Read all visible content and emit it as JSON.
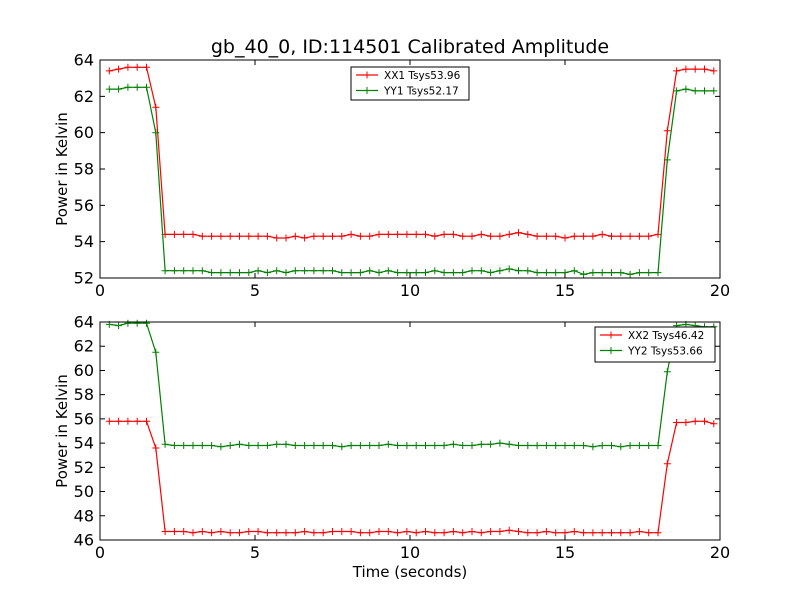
{
  "chart_data": [
    {
      "type": "line",
      "title": "gb_40_0, ID:114501 Calibrated Amplitude",
      "xlabel": "",
      "ylabel": "Power in Kelvin",
      "xlim": [
        0,
        20
      ],
      "ylim": [
        52,
        64
      ],
      "xticks": [
        "0",
        "5",
        "10",
        "15",
        "20"
      ],
      "yticks": [
        "52",
        "54",
        "56",
        "58",
        "60",
        "62",
        "64"
      ],
      "legend_position": "top-center",
      "series": [
        {
          "name": "XX1 Tsys53.96",
          "color": "#ff0000",
          "x": [
            0.3,
            0.6,
            0.9,
            1.2,
            1.5,
            1.8,
            2.1,
            2.4,
            2.7,
            3.0,
            3.3,
            3.6,
            3.9,
            4.2,
            4.5,
            4.8,
            5.1,
            5.4,
            5.7,
            6.0,
            6.3,
            6.6,
            6.9,
            7.2,
            7.5,
            7.8,
            8.1,
            8.4,
            8.7,
            9.0,
            9.3,
            9.6,
            9.9,
            10.2,
            10.5,
            10.8,
            11.1,
            11.4,
            11.7,
            12.0,
            12.3,
            12.6,
            12.9,
            13.2,
            13.5,
            13.8,
            14.1,
            14.4,
            14.7,
            15.0,
            15.3,
            15.6,
            15.9,
            16.2,
            16.5,
            16.8,
            17.1,
            17.4,
            17.7,
            18.0,
            18.3,
            18.6,
            18.9,
            19.2,
            19.5,
            19.8
          ],
          "y": [
            63.4,
            63.5,
            63.6,
            63.6,
            63.6,
            61.4,
            54.4,
            54.4,
            54.4,
            54.4,
            54.3,
            54.3,
            54.3,
            54.3,
            54.3,
            54.3,
            54.3,
            54.3,
            54.2,
            54.2,
            54.3,
            54.2,
            54.3,
            54.3,
            54.3,
            54.3,
            54.4,
            54.3,
            54.3,
            54.4,
            54.4,
            54.4,
            54.4,
            54.4,
            54.4,
            54.3,
            54.4,
            54.4,
            54.3,
            54.3,
            54.4,
            54.3,
            54.3,
            54.4,
            54.5,
            54.4,
            54.3,
            54.3,
            54.3,
            54.2,
            54.3,
            54.3,
            54.3,
            54.4,
            54.3,
            54.3,
            54.3,
            54.3,
            54.3,
            54.4,
            60.1,
            63.4,
            63.5,
            63.5,
            63.5,
            63.4
          ]
        },
        {
          "name": "YY1 Tsys52.17",
          "color": "#008000",
          "x": [
            0.3,
            0.6,
            0.9,
            1.2,
            1.5,
            1.8,
            2.1,
            2.4,
            2.7,
            3.0,
            3.3,
            3.6,
            3.9,
            4.2,
            4.5,
            4.8,
            5.1,
            5.4,
            5.7,
            6.0,
            6.3,
            6.6,
            6.9,
            7.2,
            7.5,
            7.8,
            8.1,
            8.4,
            8.7,
            9.0,
            9.3,
            9.6,
            9.9,
            10.2,
            10.5,
            10.8,
            11.1,
            11.4,
            11.7,
            12.0,
            12.3,
            12.6,
            12.9,
            13.2,
            13.5,
            13.8,
            14.1,
            14.4,
            14.7,
            15.0,
            15.3,
            15.6,
            15.9,
            16.2,
            16.5,
            16.8,
            17.1,
            17.4,
            17.7,
            18.0,
            18.3,
            18.6,
            18.9,
            19.2,
            19.5,
            19.8
          ],
          "y": [
            62.4,
            62.4,
            62.5,
            62.5,
            62.5,
            60.0,
            52.4,
            52.4,
            52.4,
            52.4,
            52.4,
            52.3,
            52.3,
            52.3,
            52.3,
            52.3,
            52.4,
            52.3,
            52.4,
            52.3,
            52.4,
            52.4,
            52.4,
            52.4,
            52.4,
            52.3,
            52.3,
            52.3,
            52.4,
            52.3,
            52.4,
            52.3,
            52.3,
            52.3,
            52.3,
            52.4,
            52.3,
            52.3,
            52.3,
            52.4,
            52.4,
            52.3,
            52.4,
            52.5,
            52.4,
            52.4,
            52.3,
            52.3,
            52.3,
            52.3,
            52.4,
            52.2,
            52.3,
            52.3,
            52.3,
            52.3,
            52.2,
            52.3,
            52.3,
            52.3,
            58.5,
            62.3,
            62.4,
            62.3,
            62.3,
            62.3
          ]
        }
      ]
    },
    {
      "type": "line",
      "title": "",
      "xlabel": "Time (seconds)",
      "ylabel": "Power in Kelvin",
      "xlim": [
        0,
        20
      ],
      "ylim": [
        46,
        64
      ],
      "xticks": [
        "0",
        "5",
        "10",
        "15",
        "20"
      ],
      "yticks": [
        "46",
        "48",
        "50",
        "52",
        "54",
        "56",
        "58",
        "60",
        "62",
        "64"
      ],
      "legend_position": "top-right",
      "series": [
        {
          "name": "XX2 Tsys46.42",
          "color": "#ff0000",
          "x": [
            0.3,
            0.6,
            0.9,
            1.2,
            1.5,
            1.8,
            2.1,
            2.4,
            2.7,
            3.0,
            3.3,
            3.6,
            3.9,
            4.2,
            4.5,
            4.8,
            5.1,
            5.4,
            5.7,
            6.0,
            6.3,
            6.6,
            6.9,
            7.2,
            7.5,
            7.8,
            8.1,
            8.4,
            8.7,
            9.0,
            9.3,
            9.6,
            9.9,
            10.2,
            10.5,
            10.8,
            11.1,
            11.4,
            11.7,
            12.0,
            12.3,
            12.6,
            12.9,
            13.2,
            13.5,
            13.8,
            14.1,
            14.4,
            14.7,
            15.0,
            15.3,
            15.6,
            15.9,
            16.2,
            16.5,
            16.8,
            17.1,
            17.4,
            17.7,
            18.0,
            18.3,
            18.6,
            18.9,
            19.2,
            19.5,
            19.8
          ],
          "y": [
            55.8,
            55.8,
            55.8,
            55.8,
            55.8,
            53.6,
            46.7,
            46.7,
            46.7,
            46.6,
            46.7,
            46.6,
            46.7,
            46.6,
            46.6,
            46.7,
            46.7,
            46.6,
            46.6,
            46.6,
            46.6,
            46.7,
            46.6,
            46.6,
            46.7,
            46.7,
            46.7,
            46.6,
            46.6,
            46.7,
            46.7,
            46.6,
            46.7,
            46.6,
            46.7,
            46.6,
            46.6,
            46.7,
            46.6,
            46.7,
            46.6,
            46.7,
            46.7,
            46.8,
            46.7,
            46.6,
            46.6,
            46.7,
            46.6,
            46.6,
            46.7,
            46.6,
            46.6,
            46.6,
            46.6,
            46.6,
            46.6,
            46.7,
            46.6,
            46.6,
            52.3,
            55.7,
            55.7,
            55.8,
            55.8,
            55.6
          ]
        },
        {
          "name": "YY2 Tsys53.66",
          "color": "#008000",
          "x": [
            0.3,
            0.6,
            0.9,
            1.2,
            1.5,
            1.8,
            2.1,
            2.4,
            2.7,
            3.0,
            3.3,
            3.6,
            3.9,
            4.2,
            4.5,
            4.8,
            5.1,
            5.4,
            5.7,
            6.0,
            6.3,
            6.6,
            6.9,
            7.2,
            7.5,
            7.8,
            8.1,
            8.4,
            8.7,
            9.0,
            9.3,
            9.6,
            9.9,
            10.2,
            10.5,
            10.8,
            11.1,
            11.4,
            11.7,
            12.0,
            12.3,
            12.6,
            12.9,
            13.2,
            13.5,
            13.8,
            14.1,
            14.4,
            14.7,
            15.0,
            15.3,
            15.6,
            15.9,
            16.2,
            16.5,
            16.8,
            17.1,
            17.4,
            17.7,
            18.0,
            18.3,
            18.6,
            18.9,
            19.2,
            19.5,
            19.8
          ],
          "y": [
            63.8,
            63.7,
            63.9,
            63.9,
            63.9,
            61.5,
            53.9,
            53.8,
            53.8,
            53.8,
            53.8,
            53.8,
            53.7,
            53.8,
            53.9,
            53.8,
            53.8,
            53.8,
            53.9,
            53.9,
            53.8,
            53.8,
            53.8,
            53.8,
            53.8,
            53.7,
            53.8,
            53.8,
            53.8,
            53.8,
            53.9,
            53.8,
            53.8,
            53.8,
            53.8,
            53.8,
            53.8,
            53.9,
            53.8,
            53.8,
            53.9,
            53.9,
            54.0,
            53.9,
            53.8,
            53.8,
            53.8,
            53.8,
            53.8,
            53.8,
            53.8,
            53.8,
            53.7,
            53.8,
            53.8,
            53.7,
            53.8,
            53.8,
            53.8,
            53.8,
            59.9,
            63.7,
            63.8,
            63.7,
            63.6,
            63.6
          ]
        }
      ]
    }
  ]
}
